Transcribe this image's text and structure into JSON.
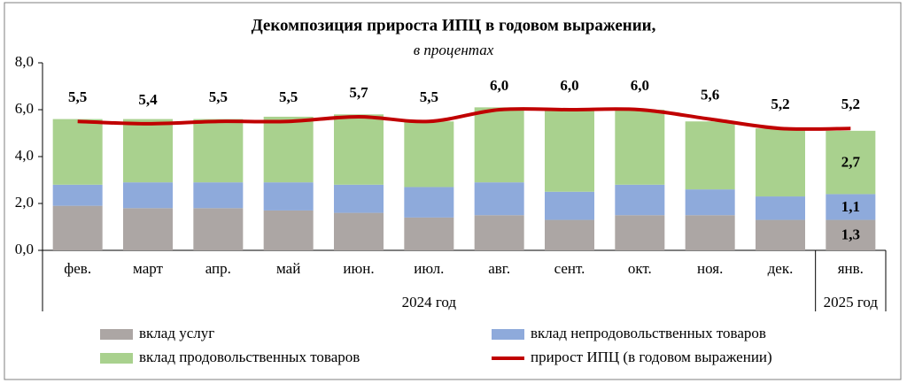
{
  "chart_data": {
    "type": "stacked-bar-line",
    "title": "Декомпозиция прироста ИПЦ в годовом выражении,",
    "subtitle": "в процентах",
    "categories": [
      "фев.",
      "март",
      "апр.",
      "май",
      "июн.",
      "июл.",
      "авг.",
      "сент.",
      "окт.",
      "ноя.",
      "дек.",
      "янв."
    ],
    "groups": [
      {
        "label": "2024 год",
        "first": "фев.",
        "last": "дек."
      },
      {
        "label": "2025 год",
        "first": "янв.",
        "last": "янв."
      }
    ],
    "series": [
      {
        "name": "вклад услуг",
        "color": "#aca6a4",
        "values": [
          1.9,
          1.8,
          1.8,
          1.7,
          1.6,
          1.4,
          1.5,
          1.3,
          1.5,
          1.5,
          1.3,
          1.3
        ],
        "value_labels": [
          null,
          null,
          null,
          null,
          null,
          null,
          null,
          null,
          null,
          null,
          null,
          "1,3"
        ]
      },
      {
        "name": "вклад непродовольственных товаров",
        "color": "#8eaadb",
        "values": [
          0.9,
          1.1,
          1.1,
          1.2,
          1.2,
          1.3,
          1.4,
          1.2,
          1.3,
          1.1,
          1.0,
          1.1
        ],
        "value_labels": [
          null,
          null,
          null,
          null,
          null,
          null,
          null,
          null,
          null,
          null,
          null,
          "1,1"
        ]
      },
      {
        "name": "вклад продовольственных товаров",
        "color": "#a9d18e",
        "values": [
          2.8,
          2.7,
          2.7,
          2.8,
          3.0,
          2.8,
          3.2,
          3.5,
          3.2,
          2.9,
          2.9,
          2.7
        ],
        "value_labels": [
          null,
          null,
          null,
          null,
          null,
          null,
          null,
          null,
          null,
          null,
          null,
          "2,7"
        ]
      },
      {
        "name": "прирост ИПЦ (в годовом выражении)",
        "color": "#c00000",
        "kind": "line",
        "values": [
          5.5,
          5.4,
          5.5,
          5.5,
          5.7,
          5.5,
          6.0,
          6.0,
          6.0,
          5.6,
          5.2,
          5.2
        ],
        "value_labels": [
          "5,5",
          "5,4",
          "5,5",
          "5,5",
          "5,7",
          "5,5",
          "6,0",
          "6,0",
          "6,0",
          "5,6",
          "5,2",
          "5,2"
        ]
      }
    ],
    "ylim": [
      0,
      8
    ],
    "yticks": [
      {
        "value": 0,
        "label": "0,0"
      },
      {
        "value": 2,
        "label": "2,0"
      },
      {
        "value": 4,
        "label": "4,0"
      },
      {
        "value": 6,
        "label": "6,0"
      },
      {
        "value": 8,
        "label": "8,0"
      }
    ],
    "grid": false,
    "legend": "bottom"
  }
}
